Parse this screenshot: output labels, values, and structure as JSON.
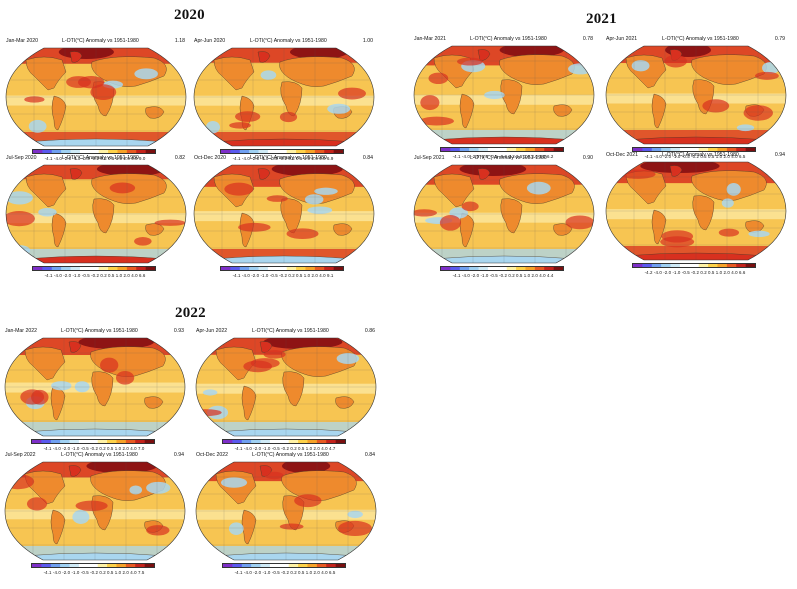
{
  "years": [
    {
      "year": "2020",
      "panels": [
        {
          "period": "Jan-Mar 2020",
          "title": "L-OTI(°C) Anomaly vs 1951-1980",
          "mean": "1.18",
          "scale": "-4.1 -4.0 -2.0 -1.0 -0.5 -0.2 0.2  0.5  1.0  2.0  4.0  9.0"
        },
        {
          "period": "Apr-Jun 2020",
          "title": "L-OTI(°C) Anomaly vs 1951-1980",
          "mean": "1.00",
          "scale": "-4.1 -4.0 -2.0 -1.0 -0.5 -0.2 0.2  0.5  1.0  2.0  4.0  6.9"
        },
        {
          "period": "Jul-Sep 2020",
          "title": "L-OTI(°C) Anomaly vs 1951-1980",
          "mean": "0.82",
          "scale": "-4.1 -4.0 -2.0 -1.0 -0.5 -0.2 0.2  0.5  1.0  2.0  4.0  6.6"
        },
        {
          "period": "Oct-Dec 2020",
          "title": "L-OTI(°C) Anomaly vs 1951-1980",
          "mean": "0.84",
          "scale": "-4.1 -4.0 -2.0 -1.0 -0.5 -0.2 0.2  0.5  1.0  2.0  4.0  9.1"
        }
      ]
    },
    {
      "year": "2021",
      "panels": [
        {
          "period": "Jan-Mar 2021",
          "title": "L-OTI(°C) Anomaly vs 1951-1980",
          "mean": "0.78",
          "scale": "-4.1 -4.0 -2.0 -1.0 -0.5 -0.2 0.2  0.5  1.0  2.0  4.0  6.2"
        },
        {
          "period": "Apr-Jun 2021",
          "title": "L-OTI(°C) Anomaly vs 1951-1980",
          "mean": "0.79",
          "scale": "-4.1 -4.0 -2.0 -1.0 -0.5 -0.2 0.2  0.5  1.0  2.0  4.0  6.5"
        },
        {
          "period": "Jul-Sep 2021",
          "title": "L-OTI(°C) Anomaly vs 1951-1980",
          "mean": "0.90",
          "scale": "-4.1 -4.0 -2.0 -1.0 -0.5 -0.2 0.2  0.5  1.0  2.0  4.0  4.4"
        },
        {
          "period": "Oct-Dec 2021",
          "title": "L-OTI(°C) Anomaly vs 1951-1980",
          "mean": "0.94",
          "scale": "-4.2 -4.0 -2.0 -1.0 -0.5 -0.2 0.2  0.5  1.0  2.0  4.0  6.6"
        }
      ]
    },
    {
      "year": "2022",
      "panels": [
        {
          "period": "Jan-Mar 2022",
          "title": "L-OTI(°C) Anomaly vs 1951-1980",
          "mean": "0.93",
          "scale": "-4.1 -4.0 -2.0 -1.0 -0.5 -0.2 0.2  0.5  1.0  2.0  4.0  7.0"
        },
        {
          "period": "Apr-Jun 2022",
          "title": "L-OTI(°C) Anomaly vs 1951-1980",
          "mean": "0.86",
          "scale": "-4.1 -4.0 -2.0 -1.0 -0.5 -0.2 0.2  0.5  1.0  2.0  4.0  4.7"
        },
        {
          "period": "Jul-Sep 2022",
          "title": "L-OTI(°C) Anomaly vs 1951-1980",
          "mean": "0.94",
          "scale": "-4.1 -4.0 -2.0 -1.0 -0.5 -0.2 0.2  0.5  1.0  2.0  4.0  7.5"
        },
        {
          "period": "Oct-Dec 2022",
          "title": "L-OTI(°C) Anomaly vs 1951-1980",
          "mean": "0.84",
          "scale": "-4.1 -4.0 -2.0 -1.0 -0.5 -0.2 0.2  0.5  1.0  2.0  4.0  6.5"
        }
      ]
    }
  ],
  "colors": {
    "scale": [
      "#7d2fc9",
      "#5a5aee",
      "#6f9ff0",
      "#9fd0f2",
      "#cfeaf6",
      "#ffffff",
      "#ffffff",
      "#fff2a6",
      "#fdd24a",
      "#f6a329",
      "#e85a22",
      "#c4231b",
      "#7a0f0f"
    ],
    "ocean_warm": "#f7c552",
    "land_warm": "#ee8a2d",
    "hot": "#d8301f",
    "very_hot": "#8e1414",
    "cool": "#a9d6ef",
    "neutral": "#ffffff",
    "coast": "#4a3b2a"
  }
}
